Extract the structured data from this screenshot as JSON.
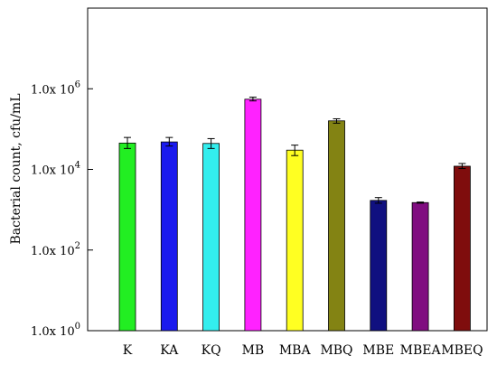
{
  "chart_data": {
    "type": "bar",
    "ylabel": "Bacterial count, cfu/mL",
    "yscale": "log",
    "ylim": [
      1,
      100000000
    ],
    "grid": false,
    "y_ticks": [
      {
        "value": 1,
        "base": "1.0x 10",
        "exp": "0"
      },
      {
        "value": 100,
        "base": "1.0x 10",
        "exp": "2"
      },
      {
        "value": 10000,
        "base": "1.0x 10",
        "exp": "4"
      },
      {
        "value": 1000000,
        "base": "1.0x 10",
        "exp": "6"
      }
    ],
    "categories": [
      "K",
      "KA",
      "KQ",
      "MB",
      "MBA",
      "MBQ",
      "MBE",
      "MBEA",
      "MBEQ"
    ],
    "values": [
      45000,
      48000,
      44000,
      550000,
      30000,
      160000,
      1700,
      1500,
      12000
    ],
    "error_high": [
      62000,
      62000,
      58000,
      620000,
      40000,
      180000,
      2000,
      1550,
      14000
    ],
    "error_low": [
      33000,
      38000,
      33000,
      500000,
      22000,
      140000,
      1450,
      1450,
      10500
    ],
    "colors": [
      "#22ee22",
      "#1a1aee",
      "#33eeee",
      "#ff22ff",
      "#ffff22",
      "#838313",
      "#101080",
      "#800d80",
      "#7f0d0d"
    ]
  }
}
